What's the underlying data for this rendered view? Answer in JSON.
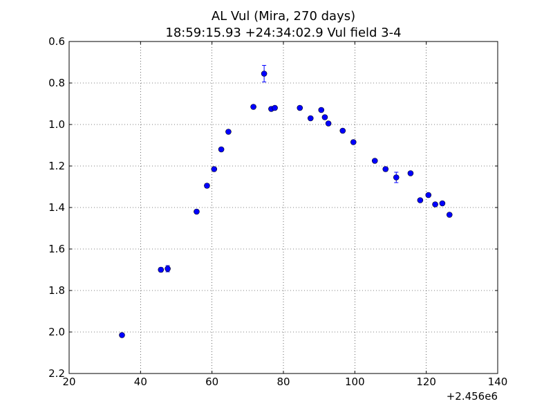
{
  "chart_data": {
    "type": "scatter",
    "title": "AL Vul (Mira, 270 days)",
    "subtitle": "18:59:15.93 +24:34:02.9 Vul field 3-4",
    "xlabel": "",
    "ylabel": "",
    "x_offset_label": "+2.456e6",
    "xlim": [
      20,
      140
    ],
    "ylim": [
      2.2,
      0.6
    ],
    "y_inverted": true,
    "grid": true,
    "x_ticks": [
      20,
      40,
      60,
      80,
      100,
      120,
      140
    ],
    "y_ticks": [
      0.6,
      0.8,
      1.0,
      1.2,
      1.4,
      1.6,
      1.8,
      2.0,
      2.2
    ],
    "x_tick_labels": [
      "20",
      "40",
      "60",
      "80",
      "100",
      "120",
      "140"
    ],
    "y_tick_labels": [
      "0.6",
      "0.8",
      "1.0",
      "1.2",
      "1.4",
      "1.6",
      "1.8",
      "2.0",
      "2.2"
    ],
    "marker_color": "#0000ff",
    "series": [
      {
        "points": [
          {
            "x": 34.8,
            "y": 2.015,
            "err": 0.005
          },
          {
            "x": 45.7,
            "y": 1.7,
            "err": 0.01
          },
          {
            "x": 47.6,
            "y": 1.695,
            "err": 0.015
          },
          {
            "x": 55.7,
            "y": 1.42,
            "err": 0.005
          },
          {
            "x": 58.6,
            "y": 1.295,
            "err": 0.01
          },
          {
            "x": 60.6,
            "y": 1.215,
            "err": 0.005
          },
          {
            "x": 62.6,
            "y": 1.12,
            "err": 0.005
          },
          {
            "x": 64.6,
            "y": 1.035,
            "err": 0.005
          },
          {
            "x": 71.6,
            "y": 0.915,
            "err": 0.005
          },
          {
            "x": 74.6,
            "y": 0.755,
            "err": 0.04
          },
          {
            "x": 76.6,
            "y": 0.925,
            "err": 0.005
          },
          {
            "x": 77.6,
            "y": 0.92,
            "err": 0.005
          },
          {
            "x": 84.6,
            "y": 0.92,
            "err": 0.005
          },
          {
            "x": 87.6,
            "y": 0.97,
            "err": 0.005
          },
          {
            "x": 90.6,
            "y": 0.93,
            "err": 0.005
          },
          {
            "x": 91.6,
            "y": 0.965,
            "err": 0.005
          },
          {
            "x": 92.6,
            "y": 0.995,
            "err": 0.005
          },
          {
            "x": 96.6,
            "y": 1.03,
            "err": 0.005
          },
          {
            "x": 99.6,
            "y": 1.085,
            "err": 0.005
          },
          {
            "x": 105.6,
            "y": 1.175,
            "err": 0.005
          },
          {
            "x": 108.6,
            "y": 1.215,
            "err": 0.01
          },
          {
            "x": 111.6,
            "y": 1.255,
            "err": 0.025
          },
          {
            "x": 115.6,
            "y": 1.235,
            "err": 0.005
          },
          {
            "x": 118.3,
            "y": 1.365,
            "err": 0.005
          },
          {
            "x": 120.6,
            "y": 1.34,
            "err": 0.005
          },
          {
            "x": 122.5,
            "y": 1.385,
            "err": 0.005
          },
          {
            "x": 124.5,
            "y": 1.38,
            "err": 0.005
          },
          {
            "x": 126.5,
            "y": 1.435,
            "err": 0.005
          }
        ]
      }
    ]
  }
}
